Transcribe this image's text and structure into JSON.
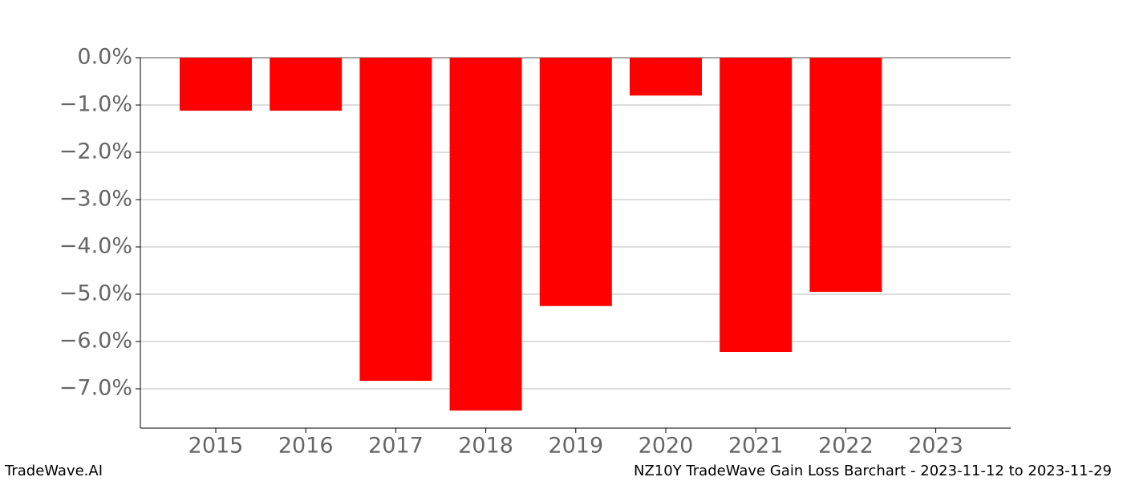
{
  "chart_data": {
    "type": "bar",
    "categories": [
      "2015",
      "2016",
      "2017",
      "2018",
      "2019",
      "2020",
      "2021",
      "2022",
      "2023"
    ],
    "values": [
      -1.12,
      -1.12,
      -6.83,
      -7.46,
      -5.25,
      -0.8,
      -6.22,
      -4.95,
      null
    ],
    "color": "#ff0000",
    "ylim": [
      -7.83,
      0
    ],
    "yticks": [
      {
        "value": 0,
        "label": "0.0%"
      },
      {
        "value": -1,
        "label": "−1.0%"
      },
      {
        "value": -2,
        "label": "−2.0%"
      },
      {
        "value": -3,
        "label": "−3.0%"
      },
      {
        "value": -4,
        "label": "−4.0%"
      },
      {
        "value": -5,
        "label": "−5.0%"
      },
      {
        "value": -6,
        "label": "−6.0%"
      },
      {
        "value": -7,
        "label": "−7.0%"
      }
    ],
    "grid": true,
    "watermark": "TradeWave.AI",
    "caption": "NZ10Y TradeWave Gain Loss Barchart - 2023-11-12 to 2023-11-29"
  }
}
